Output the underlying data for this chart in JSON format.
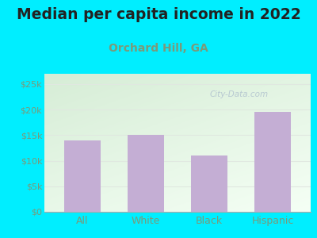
{
  "title": "Median per capita income in 2022",
  "subtitle": "Orchard Hill, GA",
  "categories": [
    "All",
    "White",
    "Black",
    "Hispanic"
  ],
  "values": [
    14000,
    15000,
    11000,
    19500
  ],
  "bar_color": "#c4aed4",
  "title_fontsize": 13.5,
  "subtitle_fontsize": 10,
  "subtitle_color": "#7a9a7a",
  "title_color": "#222222",
  "ylim": [
    0,
    27000
  ],
  "yticks": [
    0,
    5000,
    10000,
    15000,
    20000,
    25000
  ],
  "ytick_labels": [
    "$0",
    "$5k",
    "$10k",
    "$15k",
    "$20k",
    "$25k"
  ],
  "background_outer": "#00eeff",
  "background_inner_top_left": "#d6edd6",
  "background_inner_bottom_right": "#f5fff5",
  "watermark": "City-Data.com",
  "tick_color": "#7a9a7a",
  "grid_color": "#e0e8e0",
  "bottom_line_color": "#aaaaaa"
}
